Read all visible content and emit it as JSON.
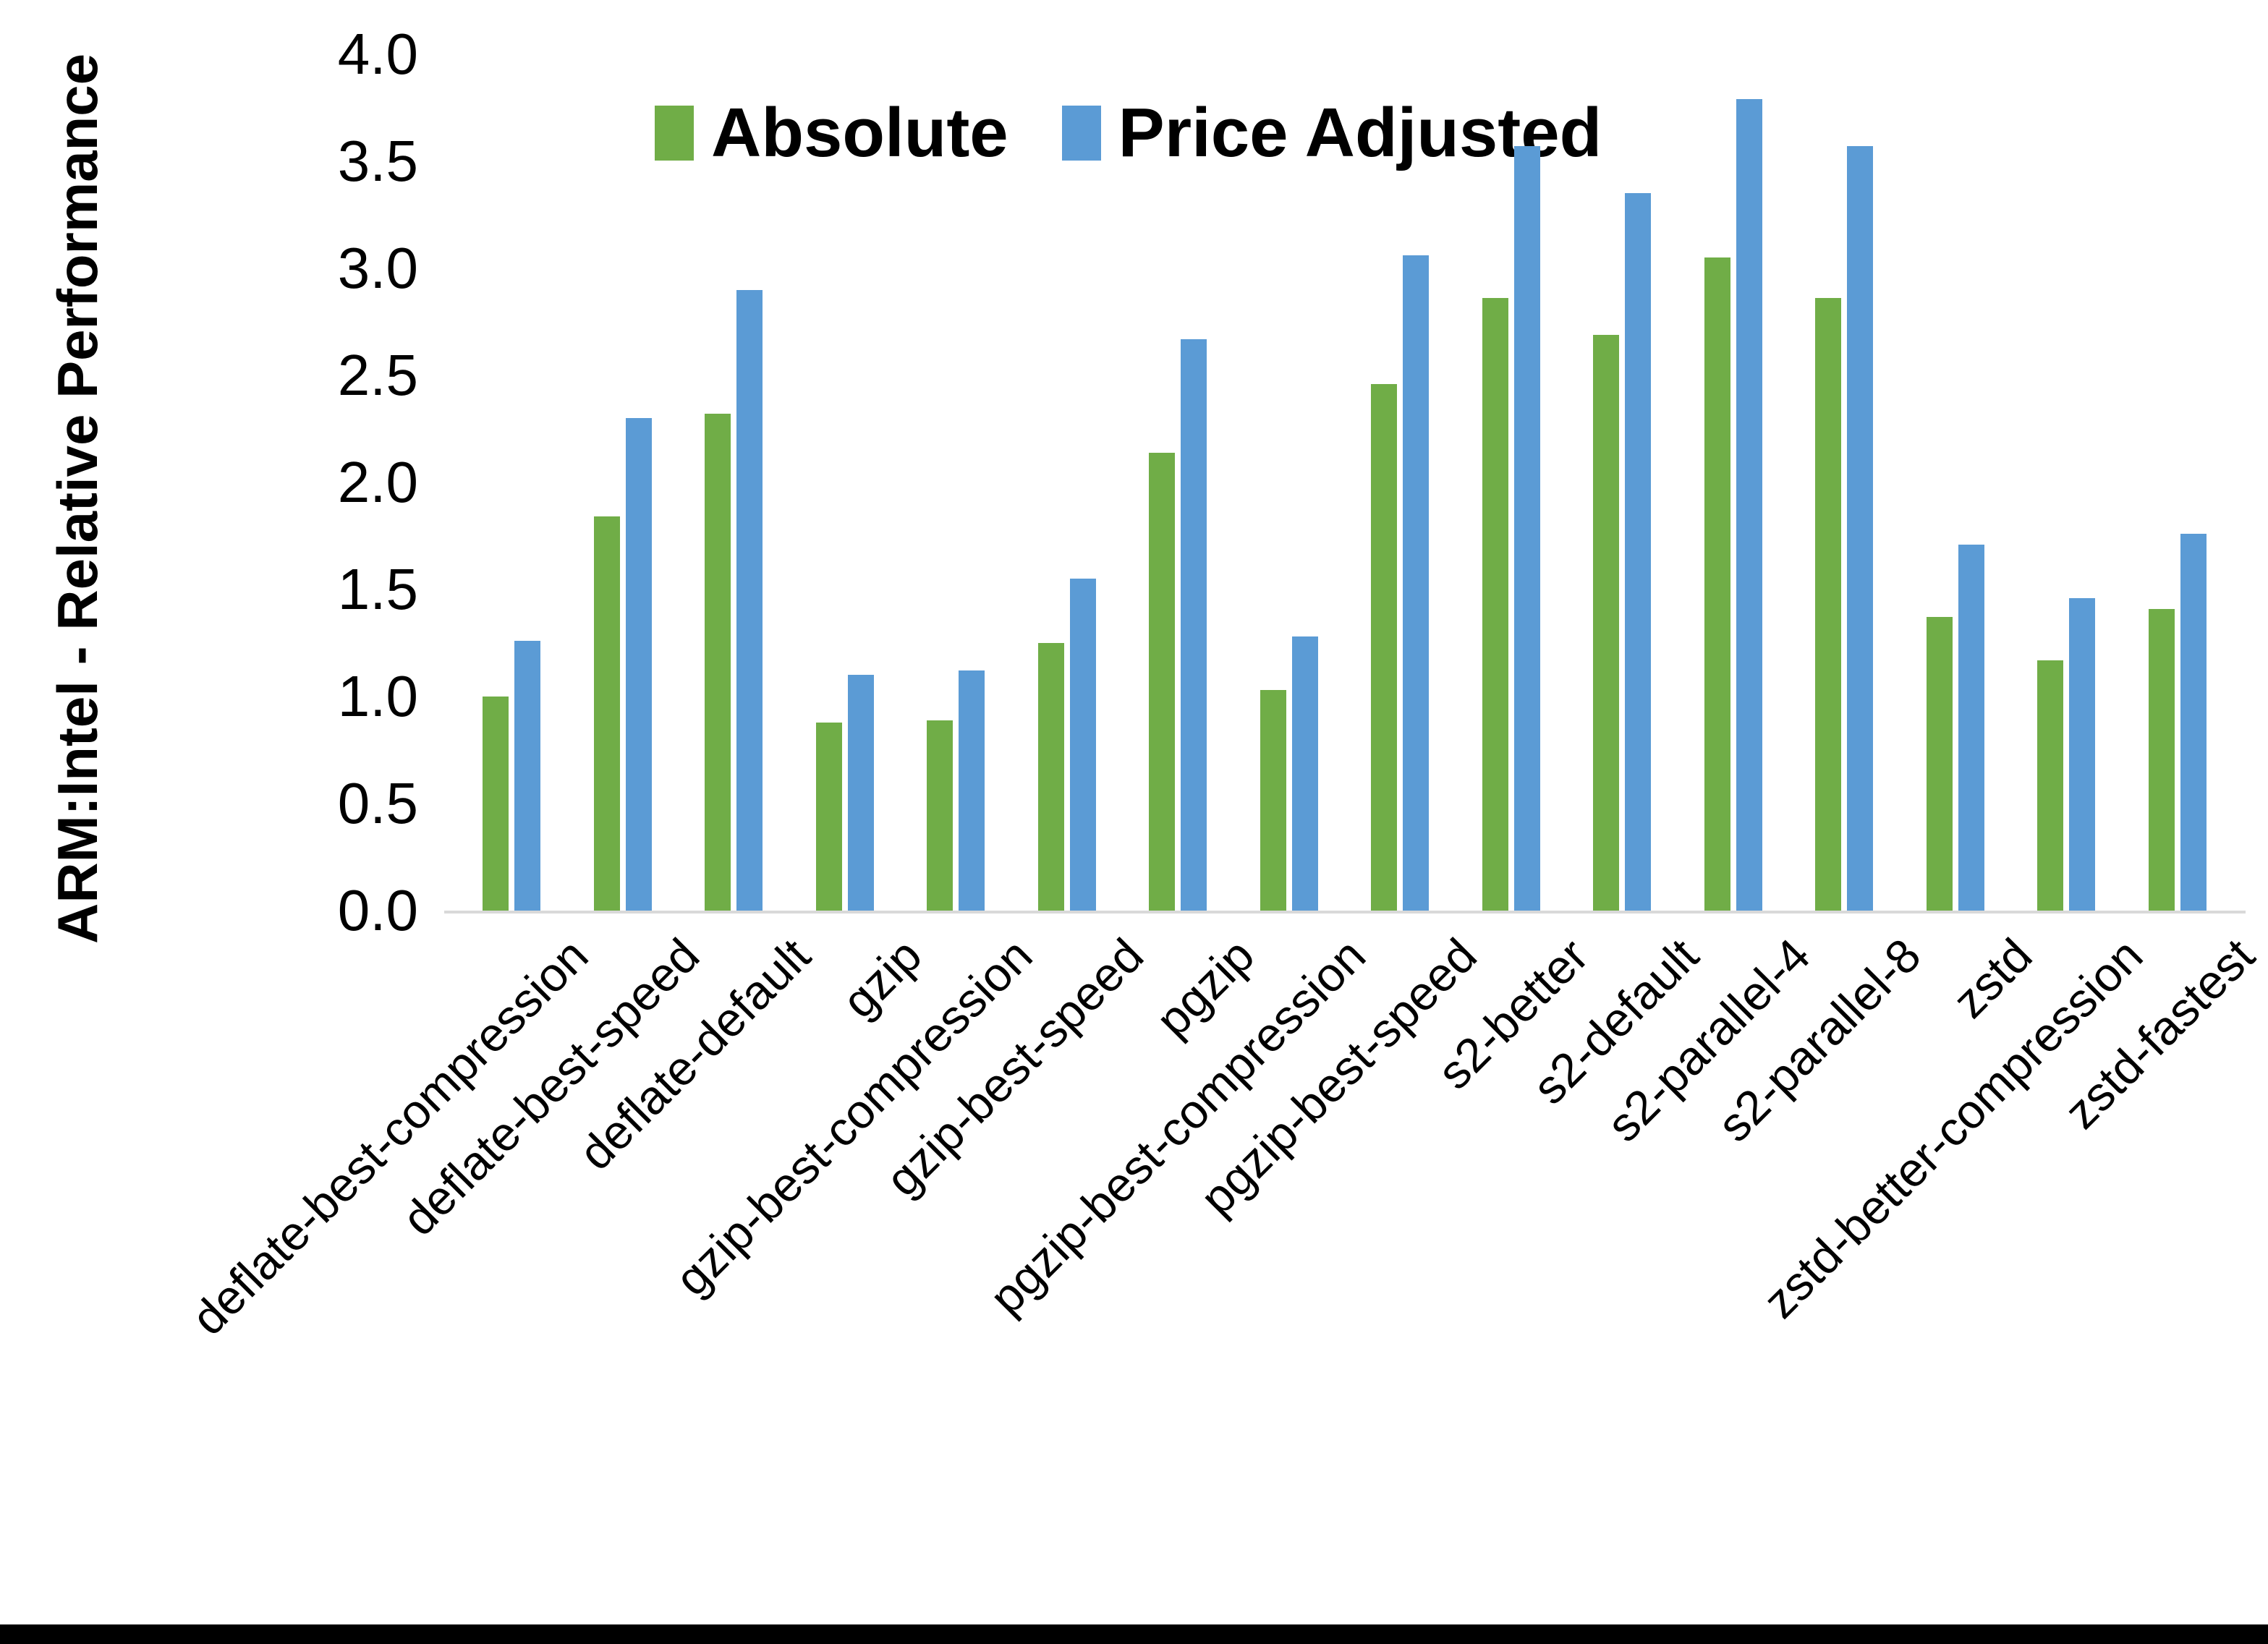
{
  "colors": {
    "absolute_green": "#70AD47",
    "price_adjusted_blue": "#5B9BD5",
    "axis_line": "#D9D9D9",
    "text": "#000000",
    "background": "#FFFFFF",
    "bottom_border": "#000000"
  },
  "legend": [
    {
      "label": "Absolute",
      "color": "#70AD47"
    },
    {
      "label": "Price Adjusted",
      "color": "#5B9BD5"
    }
  ],
  "y_axis": {
    "title": "ARM:Intel - Relative Performance",
    "ticks": [
      {
        "label": "0.0",
        "value": 0.0
      },
      {
        "label": "0.5",
        "value": 0.5
      },
      {
        "label": "1.0",
        "value": 1.0
      },
      {
        "label": "1.5",
        "value": 1.5
      },
      {
        "label": "2.0",
        "value": 2.0
      },
      {
        "label": "2.5",
        "value": 2.5
      },
      {
        "label": "3.0",
        "value": 3.0
      },
      {
        "label": "3.5",
        "value": 3.5
      },
      {
        "label": "4.0",
        "value": 4.0
      }
    ]
  },
  "chart_data": {
    "type": "bar",
    "title": "",
    "xlabel": "",
    "ylabel": "ARM:Intel - Relative Performance",
    "ylim": [
      0,
      4
    ],
    "grid": false,
    "legend_position": "top",
    "categories": [
      "deflate-best-compression",
      "deflate-best-speed",
      "deflate-default",
      "gzip",
      "gzip-best-compression",
      "gzip-best-speed",
      "pgzip",
      "pgzip-best-compression",
      "pgzip-best-speed",
      "s2-better",
      "s2-default",
      "s2-parallel-4",
      "s2-parallel-8",
      "zstd",
      "zstd-better-compression",
      "zstd-fastest"
    ],
    "series": [
      {
        "name": "Absolute",
        "color": "#70AD47",
        "values": [
          1.0,
          1.84,
          2.32,
          0.88,
          0.89,
          1.25,
          2.14,
          1.03,
          2.46,
          2.86,
          2.69,
          3.05,
          2.86,
          1.37,
          1.17,
          1.41
        ]
      },
      {
        "name": "Price Adjusted",
        "color": "#5B9BD5",
        "values": [
          1.26,
          2.3,
          2.9,
          1.1,
          1.12,
          1.55,
          2.67,
          1.28,
          3.06,
          3.57,
          3.35,
          3.79,
          3.57,
          1.71,
          1.46,
          1.76
        ]
      }
    ]
  }
}
